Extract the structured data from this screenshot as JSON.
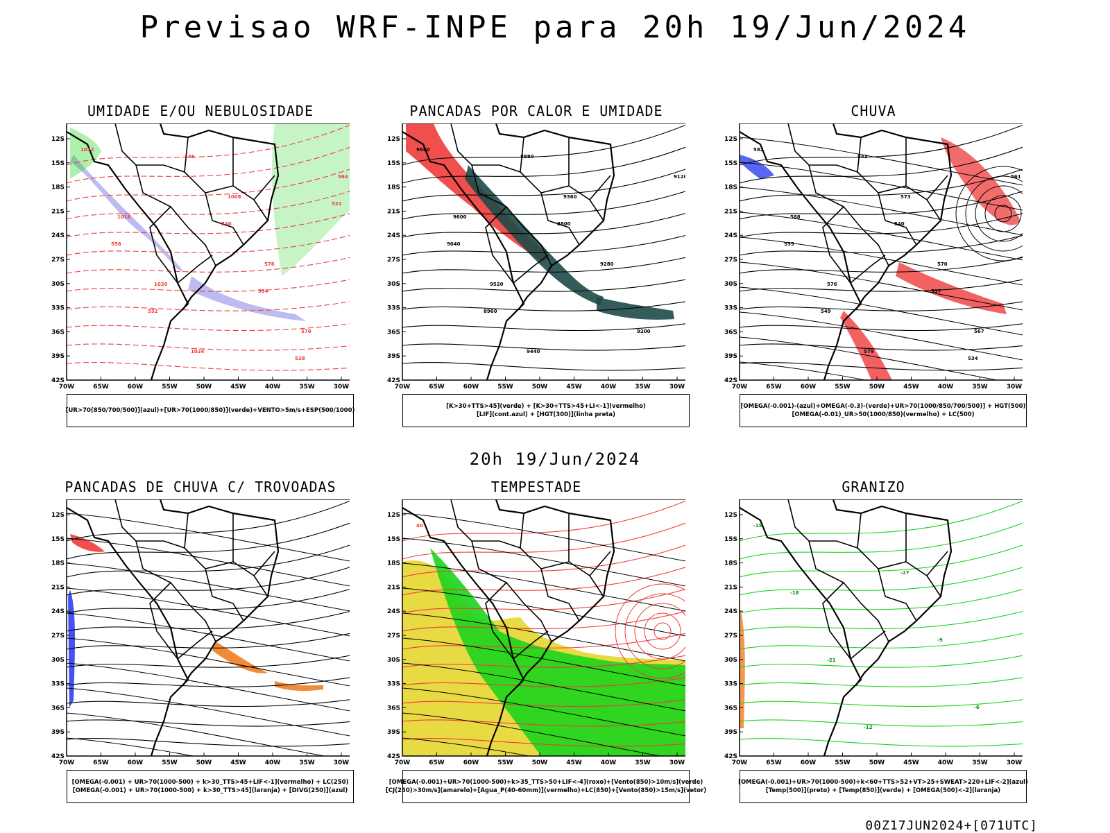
{
  "title": "Previsao WRF-INPE  para 20h 19/Jun/2024",
  "middle_title": "20h 19/Jun/2024",
  "footer": "00Z17JUN2024+[071UTC]",
  "axis": {
    "lat_ticks": [
      "12S",
      "15S",
      "18S",
      "21S",
      "24S",
      "27S",
      "30S",
      "33S",
      "36S",
      "39S",
      "42S"
    ],
    "lon_ticks": [
      "70W",
      "65W",
      "60W",
      "55W",
      "50W",
      "45W",
      "40W",
      "35W",
      "30W"
    ]
  },
  "colors": {
    "red": "#ef3b3b",
    "green": "#1bd41b",
    "blue": "#2f3ff0",
    "lavender": "#b5b5f0",
    "dark_teal": "#1d4a48",
    "yellow": "#e5d62f",
    "orange": "#f07e22",
    "black": "#000000"
  },
  "panels": [
    {
      "id": "umidade",
      "title": "UMIDADE E/OU NEBULOSIDADE",
      "legend": [
        "[UR>70(850/700/500)](azul)+[UR>70(1000/850)](verde)+VENTO>5m/s+ESP(500/1000)"
      ],
      "labels": [
        "1012",
        "1016",
        "1020",
        "1024",
        "1008",
        "576",
        "570",
        "564",
        "558",
        "552",
        "546",
        "540",
        "534",
        "528",
        "522"
      ]
    },
    {
      "id": "pancadas_calor",
      "title": "PANCADAS POR CALOR E UMIDADE",
      "legend": [
        "[K>30+TTS>45](verde) + [K>30+TTS>45+LI<-1](vermelho)",
        "[LIF](cont.azul) + [HGT(300)](linha preta)"
      ],
      "labels": [
        "9680",
        "9600",
        "9520",
        "9440",
        "9360",
        "9280",
        "9200",
        "9120",
        "9040",
        "8960",
        "8880",
        "8800"
      ]
    },
    {
      "id": "chuva",
      "title": "CHUVA",
      "legend": [
        "[OMEGA(-0.001)-(azul)+OMEGA(-0.3)-(verde)+UR>70(1000/850/700/500)] + HGT(500)",
        "[OMEGA(-0.01)_UR>50(1000/850)(vermelho) + LC(500)"
      ],
      "labels": [
        "582",
        "588",
        "576",
        "579",
        "573",
        "570",
        "567",
        "561",
        "555",
        "549",
        "543",
        "540",
        "537",
        "534"
      ]
    },
    {
      "id": "trovoadas",
      "title": "PANCADAS DE CHUVA C/ TROVOADAS",
      "legend": [
        "[OMEGA(-0.001) + UR>70(1000-500) + k>30_TTS>45+LIF<-1](vermelho) + LC(250)",
        "[OMEGA(-0.001) + UR>70(1000-500) + k>30_TTS>45](laranja) + [DIVG(250)](azul)"
      ],
      "labels": []
    },
    {
      "id": "tempestade",
      "title": "TEMPESTADE",
      "legend": [
        "[OMEGA(-0.001)+UR>70(1000-500)+k>35_TTS>50+LIF<-4](roxo)+[Vento(850)>10m/s](verde)",
        "[CJ(250)>30m/s](amarelo)+[Agua_P(40-60mm)](vermelho)+LC(850)+[Vento(850)>15m/s](vetor)"
      ],
      "labels": [
        "40"
      ]
    },
    {
      "id": "granizo",
      "title": "GRANIZO",
      "legend": [
        "[OMEGA(-0.001)+UR>70(1000-500)+k<60+TTS>52+VT>25+SWEAT>220+LIF<-2](azul)",
        "[Temp(500)](preto) + [Temp(850)](verde) + [OMEGA(500)<-2](laranja)"
      ],
      "labels": [
        "-15",
        "-18",
        "-21",
        "-12",
        "-27",
        "-9",
        "-6"
      ]
    }
  ]
}
